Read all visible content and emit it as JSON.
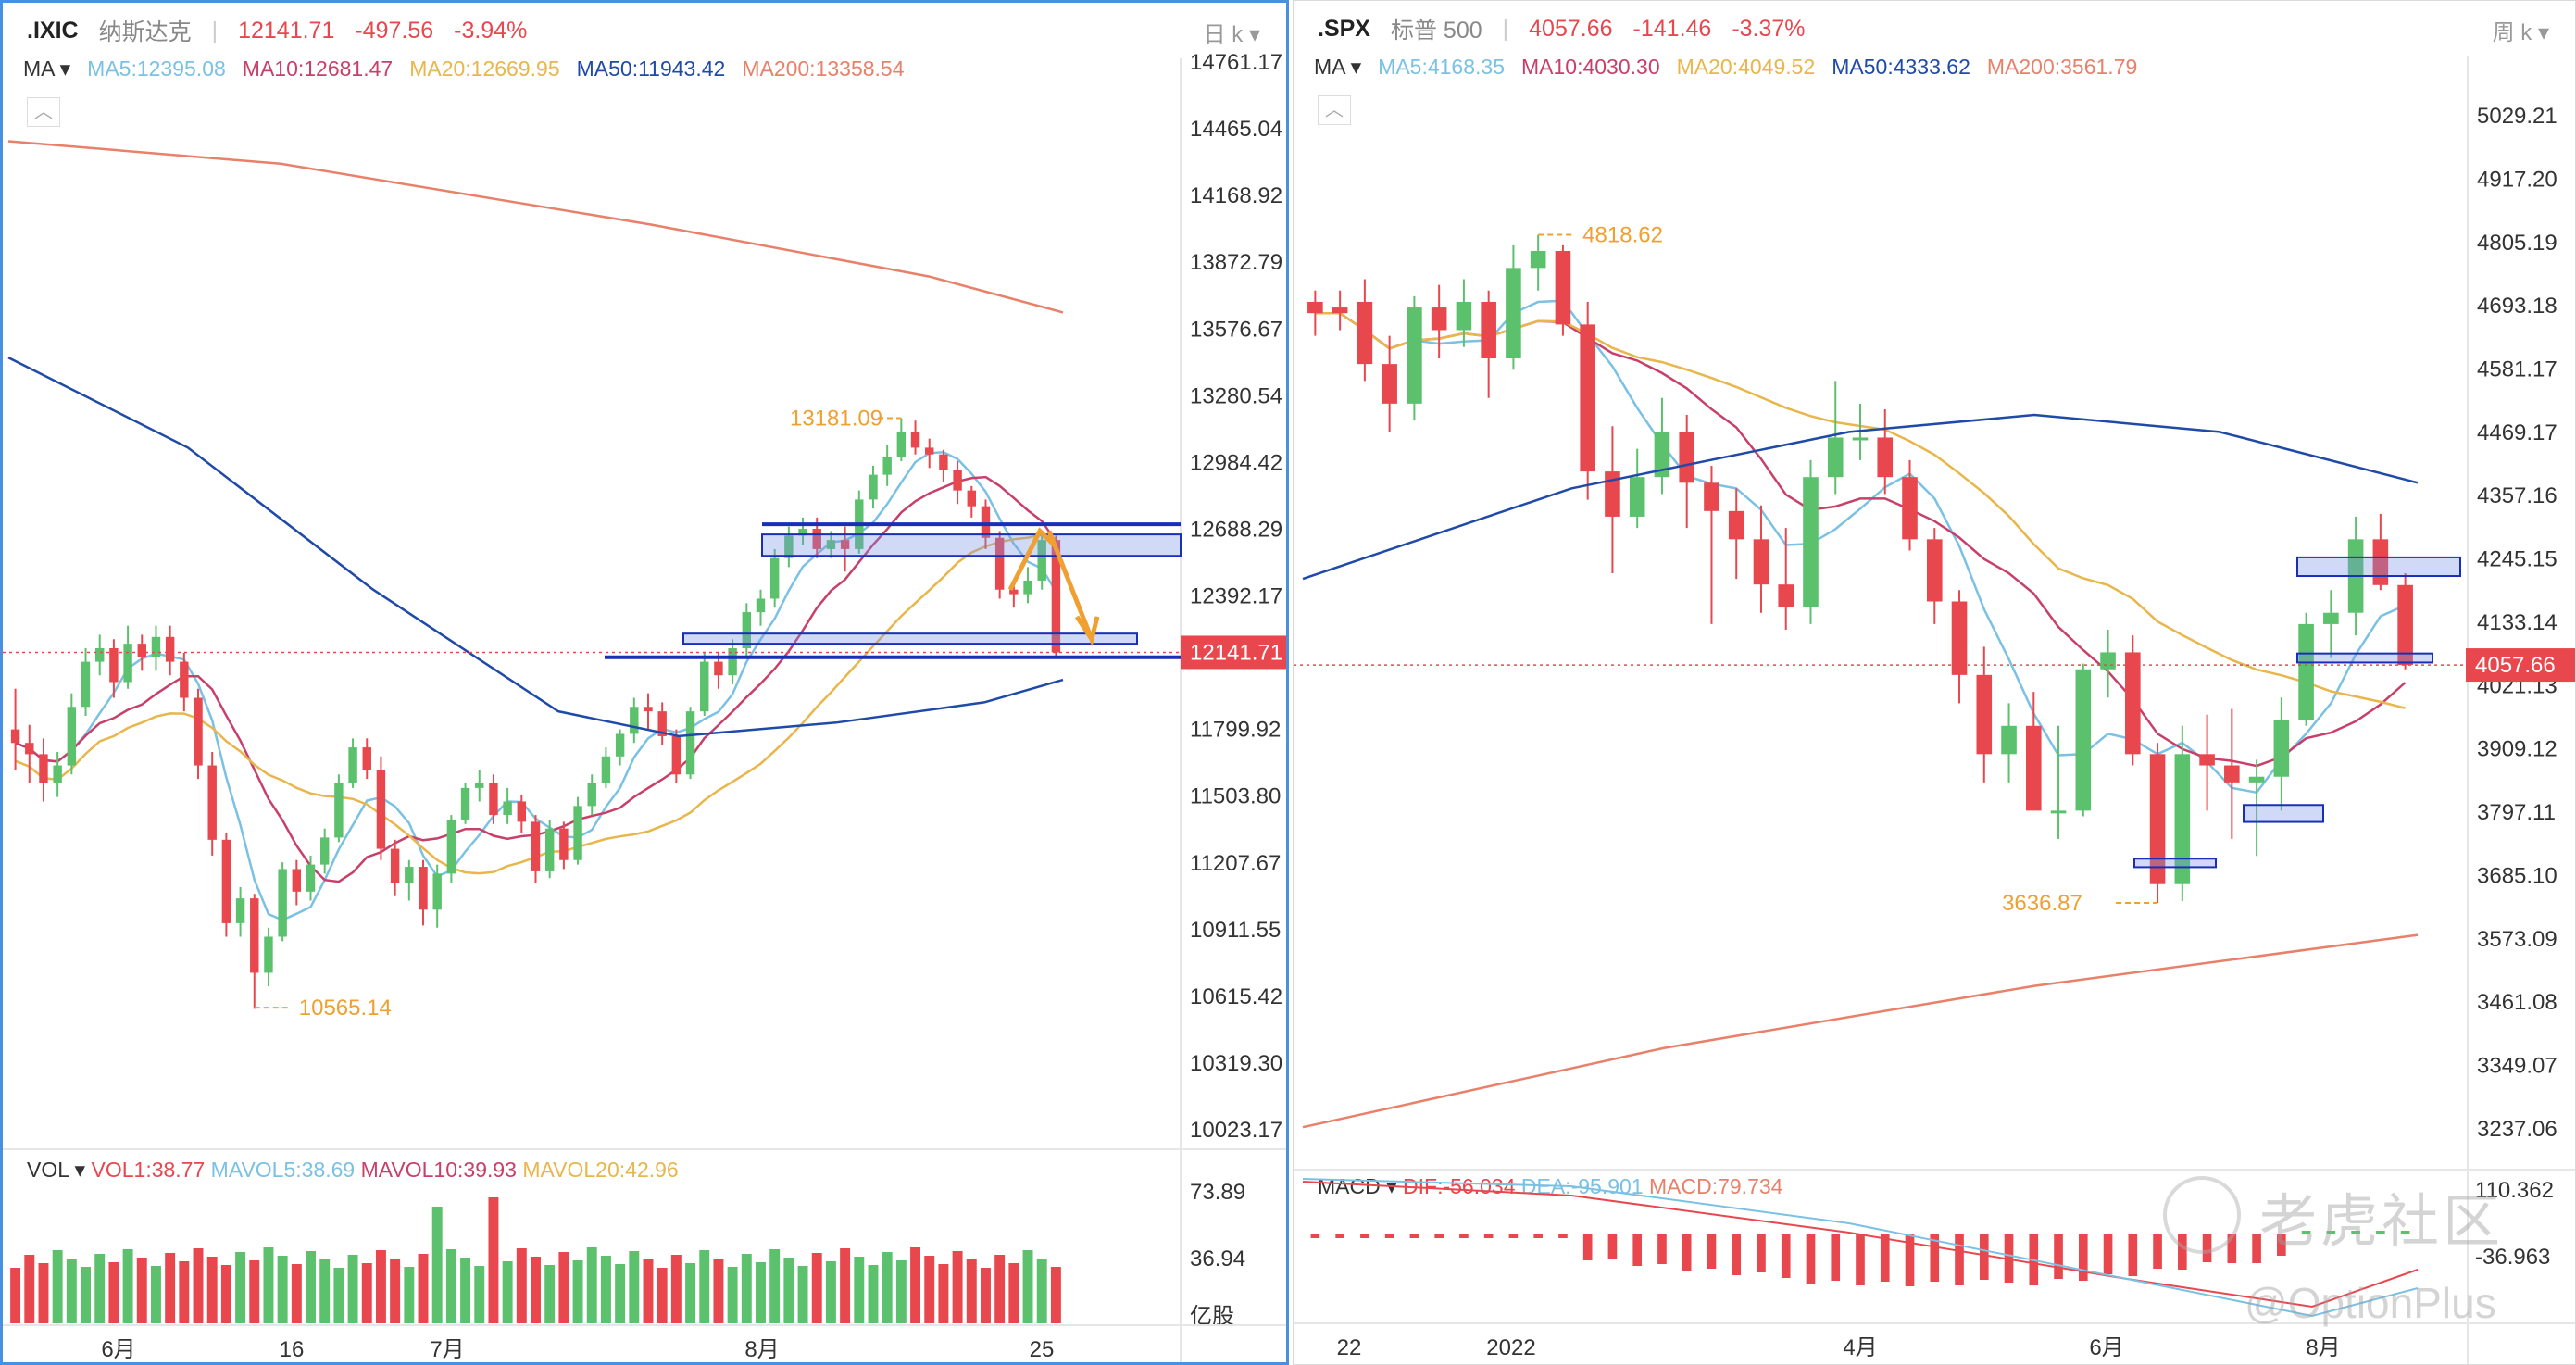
{
  "left": {
    "symbol": ".IXIC",
    "name": "纳斯达克",
    "price": "12141.71",
    "change": "-497.56",
    "change_pct": "-3.94%",
    "period": "日 k",
    "ma_label": "MA",
    "ma": [
      {
        "text": "MA5:12395.08",
        "color": "#7ac1e3"
      },
      {
        "text": "MA10:12681.47",
        "color": "#c8406a"
      },
      {
        "text": "MA20:12669.95",
        "color": "#e8b64a"
      },
      {
        "text": "MA50:11943.42",
        "color": "#1f4aa8"
      },
      {
        "text": "MA200:13358.54",
        "color": "#e8806a"
      }
    ],
    "vol_label": "VOL",
    "vol": [
      {
        "text": "VOL1:38.77",
        "color": "#e8474e"
      },
      {
        "text": "MAVOL5:38.69",
        "color": "#7ac1e3"
      },
      {
        "text": "MAVOL10:39.93",
        "color": "#c8406a"
      },
      {
        "text": "MAVOL20:42.96",
        "color": "#e8b64a"
      }
    ],
    "y_ticks": [
      "14761.17",
      "14465.04",
      "14168.92",
      "13872.79",
      "13576.67",
      "13280.54",
      "12984.42",
      "12688.29",
      "12392.17",
      "11799.92",
      "11503.80",
      "11207.67",
      "10911.55",
      "10615.42",
      "10319.30",
      "10023.17"
    ],
    "price_tag": "12141.71",
    "vol_ticks": [
      "73.89",
      "36.94"
    ],
    "vol_unit": "亿股",
    "x_labels": [
      "6月",
      "16",
      "7月",
      "8月",
      "25"
    ],
    "high_label": "13181.09",
    "low_label": "10565.14"
  },
  "right": {
    "symbol": ".SPX",
    "name": "标普 500",
    "price": "4057.66",
    "change": "-141.46",
    "change_pct": "-3.37%",
    "period": "周 k",
    "ma_label": "MA",
    "ma": [
      {
        "text": "MA5:4168.35",
        "color": "#7ac1e3"
      },
      {
        "text": "MA10:4030.30",
        "color": "#c8406a"
      },
      {
        "text": "MA20:4049.52",
        "color": "#e8b64a"
      },
      {
        "text": "MA50:4333.62",
        "color": "#1f4aa8"
      },
      {
        "text": "MA200:3561.79",
        "color": "#e8806a"
      }
    ],
    "macd_label": "MACD",
    "macd": [
      {
        "text": "DIF:-56.034",
        "color": "#e8474e"
      },
      {
        "text": "DEA:-95.901",
        "color": "#7ac1e3"
      },
      {
        "text": "MACD:79.734",
        "color": "#e8806a"
      }
    ],
    "y_ticks": [
      "5029.21",
      "4917.20",
      "4805.19",
      "4693.18",
      "4581.17",
      "4469.17",
      "4357.16",
      "4245.15",
      "4133.14",
      "4021.13",
      "3909.12",
      "3797.11",
      "3685.10",
      "3573.09",
      "3461.08",
      "3349.07",
      "3237.06"
    ],
    "price_tag": "4057.66",
    "macd_ticks": [
      "110.362",
      "-36.963"
    ],
    "x_labels": [
      "22",
      "2022",
      "4月",
      "6月",
      "8月"
    ],
    "high_label": "4818.62",
    "low_label": "3636.87"
  },
  "watermark": {
    "line1": "老虎社区",
    "line2": "@OptionPlus"
  },
  "chart_data": [
    {
      "type": "candlestick",
      "title": ".IXIC 纳斯达克 日 k",
      "ylim": [
        10023.17,
        14761.17
      ],
      "candles": [
        [
          11800,
          11740,
          11980,
          11620
        ],
        [
          11740,
          11690,
          11820,
          11560
        ],
        [
          11690,
          11560,
          11760,
          11480
        ],
        [
          11560,
          11640,
          11700,
          11500
        ],
        [
          11640,
          11900,
          11960,
          11600
        ],
        [
          11900,
          12100,
          12160,
          11860
        ],
        [
          12100,
          12160,
          12220,
          12040
        ],
        [
          12160,
          12010,
          12200,
          11940
        ],
        [
          12010,
          12180,
          12260,
          11980
        ],
        [
          12180,
          12120,
          12220,
          12060
        ],
        [
          12120,
          12210,
          12260,
          12060
        ],
        [
          12210,
          12100,
          12260,
          12040
        ],
        [
          12100,
          11940,
          12140,
          11880
        ],
        [
          11940,
          11640,
          11980,
          11580
        ],
        [
          11640,
          11310,
          11700,
          11240
        ],
        [
          11310,
          10940,
          11340,
          10880
        ],
        [
          10940,
          11050,
          11100,
          10880
        ],
        [
          11050,
          10720,
          11070,
          10560
        ],
        [
          10720,
          10880,
          10920,
          10660
        ],
        [
          10880,
          11180,
          11210,
          10860
        ],
        [
          11180,
          11080,
          11220,
          11020
        ],
        [
          11080,
          11200,
          11240,
          11040
        ],
        [
          11200,
          11320,
          11360,
          11160
        ],
        [
          11320,
          11560,
          11600,
          11300
        ],
        [
          11560,
          11720,
          11760,
          11540
        ],
        [
          11720,
          11620,
          11760,
          11580
        ],
        [
          11620,
          11270,
          11680,
          11220
        ],
        [
          11270,
          11120,
          11310,
          11060
        ],
        [
          11120,
          11190,
          11220,
          11040
        ],
        [
          11190,
          11000,
          11220,
          10930
        ],
        [
          11000,
          11160,
          11200,
          10920
        ],
        [
          11160,
          11400,
          11420,
          11120
        ],
        [
          11400,
          11540,
          11560,
          11380
        ],
        [
          11540,
          11560,
          11620,
          11480
        ],
        [
          11560,
          11420,
          11600,
          11380
        ],
        [
          11420,
          11480,
          11540,
          11380
        ],
        [
          11480,
          11390,
          11510,
          11340
        ],
        [
          11390,
          11170,
          11420,
          11120
        ],
        [
          11170,
          11360,
          11400,
          11140
        ],
        [
          11360,
          11220,
          11390,
          11180
        ],
        [
          11220,
          11460,
          11500,
          11200
        ],
        [
          11460,
          11560,
          11600,
          11420
        ],
        [
          11560,
          11680,
          11720,
          11540
        ],
        [
          11680,
          11780,
          11800,
          11640
        ],
        [
          11780,
          11900,
          11940,
          11740
        ],
        [
          11900,
          11880,
          11960,
          11800
        ],
        [
          11880,
          11770,
          11920,
          11730
        ],
        [
          11770,
          11600,
          11800,
          11560
        ],
        [
          11600,
          11880,
          11900,
          11580
        ],
        [
          11880,
          12100,
          12140,
          11860
        ],
        [
          12100,
          12040,
          12140,
          11980
        ],
        [
          12040,
          12160,
          12200,
          12000
        ],
        [
          12160,
          12320,
          12360,
          12120
        ],
        [
          12320,
          12380,
          12420,
          12260
        ],
        [
          12380,
          12560,
          12600,
          12340
        ],
        [
          12560,
          12660,
          12700,
          12520
        ],
        [
          12660,
          12690,
          12740,
          12620
        ],
        [
          12690,
          12600,
          12740,
          12560
        ],
        [
          12600,
          12640,
          12680,
          12560
        ],
        [
          12640,
          12600,
          12700,
          12500
        ],
        [
          12600,
          12820,
          12860,
          12580
        ],
        [
          12820,
          12930,
          12970,
          12780
        ],
        [
          12930,
          13010,
          13060,
          12880
        ],
        [
          13010,
          13120,
          13181,
          12990
        ],
        [
          13120,
          13050,
          13170,
          13020
        ],
        [
          13050,
          13020,
          13090,
          12960
        ],
        [
          13020,
          12950,
          13040,
          12900
        ],
        [
          12950,
          12860,
          12990,
          12800
        ],
        [
          12860,
          12790,
          12880,
          12740
        ],
        [
          12790,
          12650,
          12820,
          12600
        ],
        [
          12650,
          12420,
          12680,
          12380
        ],
        [
          12420,
          12400,
          12460,
          12340
        ],
        [
          12400,
          12460,
          12520,
          12360
        ],
        [
          12460,
          12640,
          12680,
          12420
        ],
        [
          12640,
          12141.71,
          12660,
          12120
        ]
      ]
    },
    {
      "type": "candlestick",
      "title": ".SPX 标普 500 周 k",
      "ylim": [
        3237.06,
        5029.21
      ],
      "candles": [
        [
          4700,
          4680,
          4720,
          4640
        ],
        [
          4690,
          4680,
          4720,
          4650
        ],
        [
          4700,
          4590,
          4740,
          4560
        ],
        [
          4590,
          4520,
          4640,
          4470
        ],
        [
          4520,
          4690,
          4710,
          4490
        ],
        [
          4690,
          4650,
          4730,
          4600
        ],
        [
          4650,
          4700,
          4740,
          4620
        ],
        [
          4700,
          4600,
          4720,
          4530
        ],
        [
          4600,
          4760,
          4800,
          4580
        ],
        [
          4760,
          4790,
          4818.62,
          4720
        ],
        [
          4790,
          4660,
          4800,
          4640
        ],
        [
          4660,
          4400,
          4700,
          4350
        ],
        [
          4400,
          4320,
          4480,
          4220
        ],
        [
          4320,
          4390,
          4440,
          4300
        ],
        [
          4390,
          4470,
          4530,
          4360
        ],
        [
          4470,
          4380,
          4500,
          4300
        ],
        [
          4380,
          4330,
          4410,
          4130
        ],
        [
          4330,
          4280,
          4370,
          4210
        ],
        [
          4280,
          4200,
          4340,
          4150
        ],
        [
          4200,
          4160,
          4300,
          4120
        ],
        [
          4160,
          4390,
          4420,
          4130
        ],
        [
          4390,
          4460,
          4560,
          4360
        ],
        [
          4460,
          4460,
          4520,
          4420
        ],
        [
          4460,
          4390,
          4510,
          4360
        ],
        [
          4390,
          4280,
          4420,
          4260
        ],
        [
          4280,
          4170,
          4300,
          4130
        ],
        [
          4170,
          4040,
          4190,
          3990
        ],
        [
          4040,
          3900,
          4090,
          3850
        ],
        [
          3900,
          3950,
          3990,
          3850
        ],
        [
          3950,
          3800,
          4010,
          3810
        ],
        [
          3800,
          3800,
          3950,
          3750
        ],
        [
          3800,
          4050,
          4060,
          3790
        ],
        [
          4050,
          4080,
          4120,
          4000
        ],
        [
          4080,
          3900,
          4110,
          3880
        ],
        [
          3900,
          3670,
          3920,
          3636.87
        ],
        [
          3670,
          3900,
          3950,
          3640
        ],
        [
          3900,
          3880,
          3970,
          3800
        ],
        [
          3880,
          3850,
          3980,
          3750
        ],
        [
          3850,
          3860,
          3890,
          3720
        ],
        [
          3860,
          3960,
          4000,
          3800
        ],
        [
          3960,
          4130,
          4150,
          3950
        ],
        [
          4130,
          4150,
          4190,
          4070
        ],
        [
          4150,
          4280,
          4320,
          4110
        ],
        [
          4280,
          4199,
          4325,
          4190
        ],
        [
          4199,
          4057.66,
          4220,
          4050
        ]
      ]
    }
  ]
}
